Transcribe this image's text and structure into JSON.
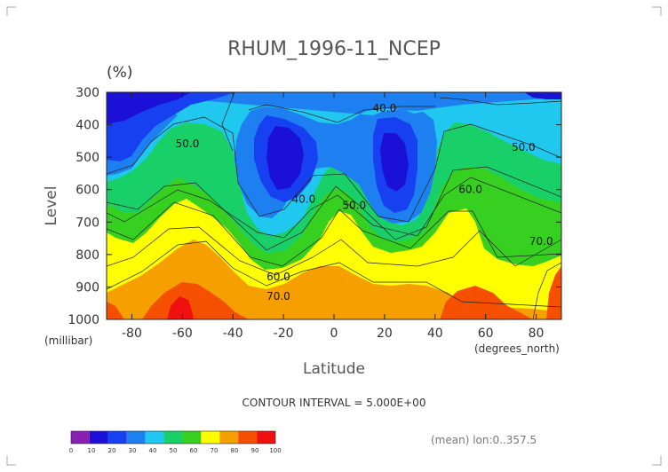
{
  "chart_data": {
    "type": "contour",
    "title": "RHUM_1996-11_NCEP",
    "units": "(%)",
    "xlabel": "Latitude",
    "x_units": "(degrees_north)",
    "ylabel": "Level",
    "y_units": "(millibar)",
    "xlim": [
      -90,
      90
    ],
    "ylim": [
      1000,
      300
    ],
    "x_ticks": [
      "-80",
      "-60",
      "-40",
      "-20",
      "0",
      "20",
      "40",
      "60",
      "80"
    ],
    "x_tick_values": [
      -80,
      -60,
      -40,
      -20,
      0,
      20,
      40,
      60,
      80
    ],
    "y_ticks": [
      "300",
      "400",
      "500",
      "600",
      "700",
      "800",
      "900",
      "1000"
    ],
    "y_tick_values": [
      300,
      400,
      500,
      600,
      700,
      800,
      900,
      1000
    ],
    "contour_interval": "CONTOUR INTERVAL = 5.000E+00",
    "footnote": "(mean) lon:0..357.5",
    "contour_labels": [
      {
        "text": "40.0",
        "lat": 20,
        "lev": 360
      },
      {
        "text": "50.0",
        "lat": -58,
        "lev": 470
      },
      {
        "text": "50.0",
        "lat": 75,
        "lev": 480
      },
      {
        "text": "40.0",
        "lat": -12,
        "lev": 640
      },
      {
        "text": "50.0",
        "lat": 8,
        "lev": 660
      },
      {
        "text": "60.0",
        "lat": 54,
        "lev": 610
      },
      {
        "text": "70.0",
        "lat": 82,
        "lev": 770
      },
      {
        "text": "60.0",
        "lat": -22,
        "lev": 880
      },
      {
        "text": "70.0",
        "lat": -22,
        "lev": 940
      }
    ],
    "colorbar": {
      "levels": [
        "0",
        "10",
        "20",
        "30",
        "40",
        "50",
        "60",
        "70",
        "80",
        "90",
        "100"
      ],
      "colors": [
        "#8a1fb3",
        "#1a10d8",
        "#1740f0",
        "#1e80f0",
        "#20c8f0",
        "#19d068",
        "#38d020",
        "#ffff00",
        "#f5a000",
        "#f55000",
        "#f01010"
      ]
    }
  }
}
